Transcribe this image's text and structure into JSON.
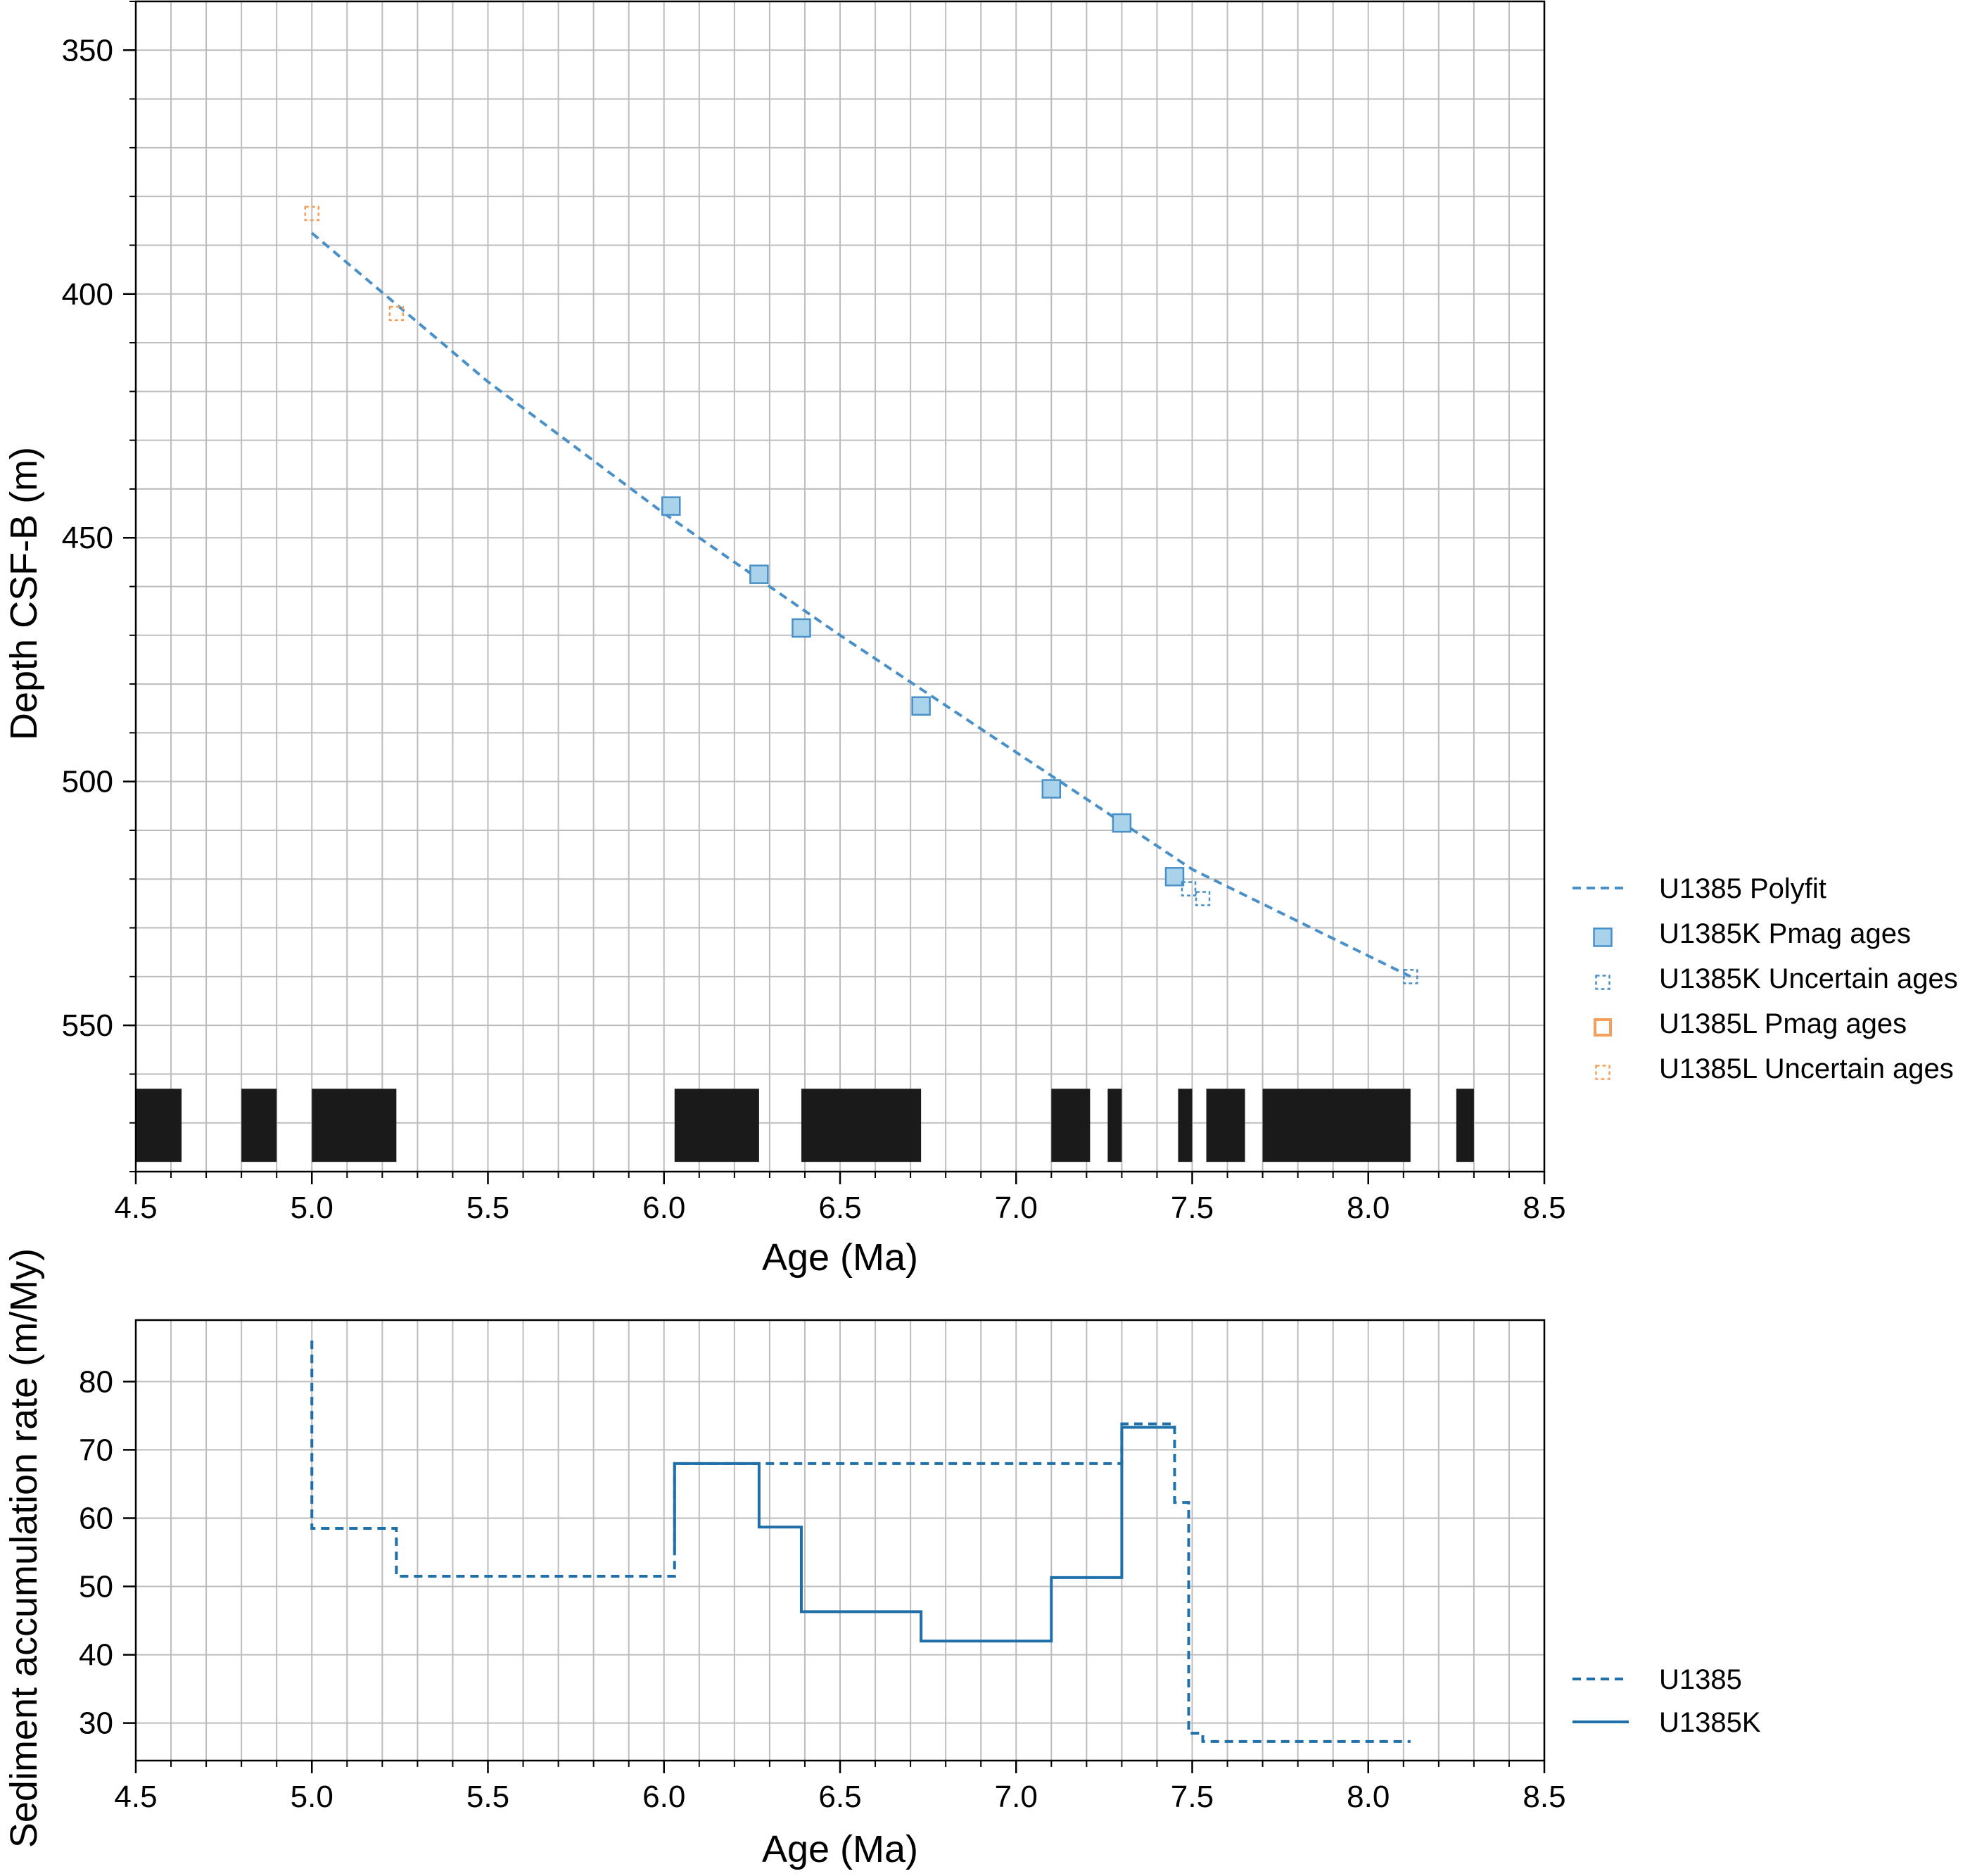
{
  "chart_data": [
    {
      "type": "scatter",
      "xlabel": "Age (Ma)",
      "ylabel": "Depth CSF-B (m)",
      "xlim": [
        4.5,
        8.5
      ],
      "ylim": [
        580,
        340
      ],
      "y_inverted": true,
      "grid": true,
      "x_ticks": [
        "4.5",
        "5.0",
        "5.5",
        "6.0",
        "6.5",
        "7.0",
        "7.5",
        "8.0",
        "8.5"
      ],
      "y_ticks": [
        "350",
        "400",
        "450",
        "500",
        "550"
      ],
      "legend_position": "right",
      "series": [
        {
          "name": "U1385 Polyfit",
          "kind": "line",
          "style": "dashed",
          "color": "#4a90c8",
          "x": [
            5.0,
            5.5,
            6.0,
            6.5,
            7.0,
            7.5,
            8.12
          ],
          "y": [
            387.5,
            418.0,
            445.0,
            470.0,
            494.0,
            518.0,
            540.0
          ]
        },
        {
          "name": "U1385K Pmag ages",
          "kind": "marker",
          "marker": "square-filled",
          "color": "#4a90c8",
          "fill": "#a9d3ea",
          "x": [
            6.02,
            6.27,
            6.39,
            6.73,
            7.1,
            7.3,
            7.45
          ],
          "y": [
            443.5,
            457.5,
            468.5,
            484.5,
            501.5,
            508.5,
            519.5
          ]
        },
        {
          "name": "U1385K Uncertain ages",
          "kind": "marker",
          "marker": "square-open-dashed",
          "color": "#4a90c8",
          "x": [
            7.49,
            7.53,
            8.12
          ],
          "y": [
            522.0,
            524.0,
            540.0
          ]
        },
        {
          "name": "U1385L Pmag ages",
          "kind": "marker",
          "marker": "square-open",
          "color": "#f5a05a",
          "x": [],
          "y": []
        },
        {
          "name": "U1385L Uncertain ages",
          "kind": "marker",
          "marker": "square-open-dashed",
          "color": "#f5a05a",
          "x": [
            5.0,
            5.24
          ],
          "y": [
            383.5,
            404.0
          ]
        }
      ],
      "polarity_chrons": [
        [
          4.5,
          4.63
        ],
        [
          4.8,
          4.9
        ],
        [
          5.0,
          5.24
        ],
        [
          6.03,
          6.27
        ],
        [
          6.39,
          6.73
        ],
        [
          7.1,
          7.21
        ],
        [
          7.26,
          7.3
        ],
        [
          7.46,
          7.5
        ],
        [
          7.54,
          7.65
        ],
        [
          7.7,
          8.12
        ],
        [
          8.25,
          8.3
        ]
      ],
      "polarity_y_range": [
        563,
        578
      ]
    },
    {
      "type": "line",
      "xlabel": "Age (Ma)",
      "ylabel": "Sediment accumulation rate (m/My)",
      "xlim": [
        4.5,
        8.5
      ],
      "ylim": [
        24.5,
        89
      ],
      "grid": true,
      "x_ticks": [
        "4.5",
        "5.0",
        "5.5",
        "6.0",
        "6.5",
        "7.0",
        "7.5",
        "8.0",
        "8.5"
      ],
      "y_ticks": [
        "30",
        "40",
        "50",
        "60",
        "70",
        "80"
      ],
      "legend_position": "right",
      "series": [
        {
          "name": "U1385",
          "style": "dashed-step",
          "color": "#1f6fa8",
          "x": [
            5.0,
            5.0,
            5.24,
            5.24,
            6.03,
            6.03,
            7.3,
            7.3,
            7.45,
            7.45,
            7.49,
            7.49,
            7.53,
            7.53,
            8.12
          ],
          "y": [
            86.0,
            58.5,
            58.5,
            51.5,
            51.5,
            68.0,
            68.0,
            73.8,
            73.8,
            62.3,
            62.3,
            28.5,
            28.5,
            27.3,
            27.3
          ]
        },
        {
          "name": "U1385K",
          "style": "solid-step",
          "color": "#1f6fa8",
          "x": [
            6.03,
            6.03,
            6.27,
            6.27,
            6.39,
            6.39,
            6.73,
            6.73,
            7.1,
            7.1,
            7.3,
            7.3,
            7.45
          ],
          "y": [
            55.0,
            68.0,
            68.0,
            58.7,
            58.7,
            46.3,
            46.3,
            42.0,
            42.0,
            51.3,
            51.3,
            73.3,
            73.3
          ]
        }
      ]
    }
  ]
}
